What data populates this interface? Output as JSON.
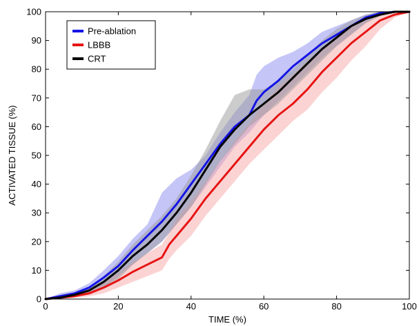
{
  "chart_data": {
    "type": "line",
    "title": "",
    "xlabel": "TIME (%)",
    "ylabel": "ACTIVATED TISSUE (%)",
    "xlim": [
      0,
      100
    ],
    "ylim": [
      0,
      100
    ],
    "x_ticks": [
      0,
      20,
      40,
      60,
      80,
      100
    ],
    "y_ticks": [
      0,
      10,
      20,
      30,
      40,
      50,
      60,
      70,
      80,
      90,
      100
    ],
    "grid": false,
    "legend_position": "top-left",
    "series": [
      {
        "name": "Pre-ablation",
        "color": "#1414e6",
        "band_color": "#8c8cf0",
        "x": [
          0,
          4,
          8,
          12,
          16,
          20,
          24,
          28,
          32,
          36,
          40,
          44,
          48,
          52,
          56,
          58,
          60,
          64,
          68,
          72,
          76,
          80,
          84,
          88,
          92,
          96,
          100
        ],
        "values": [
          0,
          1,
          2,
          4,
          7.5,
          11.5,
          17,
          22,
          27,
          33,
          40,
          47,
          54,
          60,
          64,
          69,
          72,
          76,
          81,
          85,
          89,
          92,
          95,
          98,
          99.5,
          100,
          100
        ],
        "lower": [
          0,
          0,
          1,
          2,
          4,
          8,
          12,
          16,
          20,
          26,
          32,
          39,
          46,
          53,
          58,
          61,
          64,
          69,
          74,
          79,
          84,
          88,
          92,
          96,
          99,
          100,
          100
        ],
        "upper": [
          0,
          2,
          3,
          5.5,
          10,
          15,
          21,
          26,
          37,
          42,
          45,
          50,
          58,
          65,
          71,
          78,
          81,
          84,
          86,
          89,
          93,
          95,
          97,
          99,
          100,
          100,
          100
        ]
      },
      {
        "name": "LBBB",
        "color": "#e61414",
        "band_color": "#f8a8a8",
        "x": [
          0,
          4,
          8,
          12,
          16,
          20,
          24,
          28,
          32,
          34,
          36,
          40,
          44,
          48,
          52,
          56,
          60,
          64,
          68,
          72,
          76,
          80,
          84,
          88,
          92,
          96,
          100
        ],
        "values": [
          0,
          0.5,
          1,
          2,
          4,
          6.5,
          9.5,
          12,
          14.5,
          19,
          22,
          28,
          35,
          41,
          47,
          53,
          59,
          64,
          68,
          73,
          79,
          84,
          89,
          93,
          97,
          99,
          100
        ],
        "lower": [
          0,
          0,
          0.5,
          1,
          2,
          4,
          6,
          8,
          10,
          14,
          17,
          22,
          29,
          35,
          41,
          47,
          52,
          57,
          62,
          66,
          72,
          77,
          83,
          88,
          94,
          98,
          100
        ],
        "upper": [
          0,
          1,
          1.5,
          3,
          6,
          9,
          13,
          16,
          19,
          23,
          28,
          34,
          41,
          48,
          55,
          61,
          68,
          74,
          78,
          83,
          87,
          91,
          95,
          98,
          99.5,
          100,
          100
        ]
      },
      {
        "name": "CRT",
        "color": "#000000",
        "band_color": "#999999",
        "x": [
          0,
          4,
          8,
          12,
          16,
          20,
          24,
          28,
          32,
          36,
          40,
          44,
          48,
          52,
          56,
          60,
          64,
          68,
          72,
          76,
          80,
          84,
          88,
          92,
          96,
          100
        ],
        "values": [
          0,
          0.5,
          1.5,
          3,
          6,
          10,
          15,
          19,
          24,
          30,
          37,
          45,
          53,
          59,
          64,
          68,
          72,
          77,
          82,
          87,
          91,
          95,
          97.5,
          99,
          100,
          100
        ],
        "lower": [
          0,
          0,
          1,
          2,
          4,
          7,
          12,
          16,
          20,
          26,
          32,
          40,
          48,
          54,
          60,
          64,
          68,
          73,
          78,
          83,
          88,
          92,
          96,
          98.5,
          100,
          100
        ],
        "upper": [
          0,
          1,
          2,
          4,
          8,
          13,
          19,
          24,
          29,
          35,
          43,
          52,
          62,
          71,
          73,
          73,
          76,
          80,
          85,
          90,
          94,
          97,
          99,
          100,
          100,
          100
        ]
      }
    ]
  }
}
